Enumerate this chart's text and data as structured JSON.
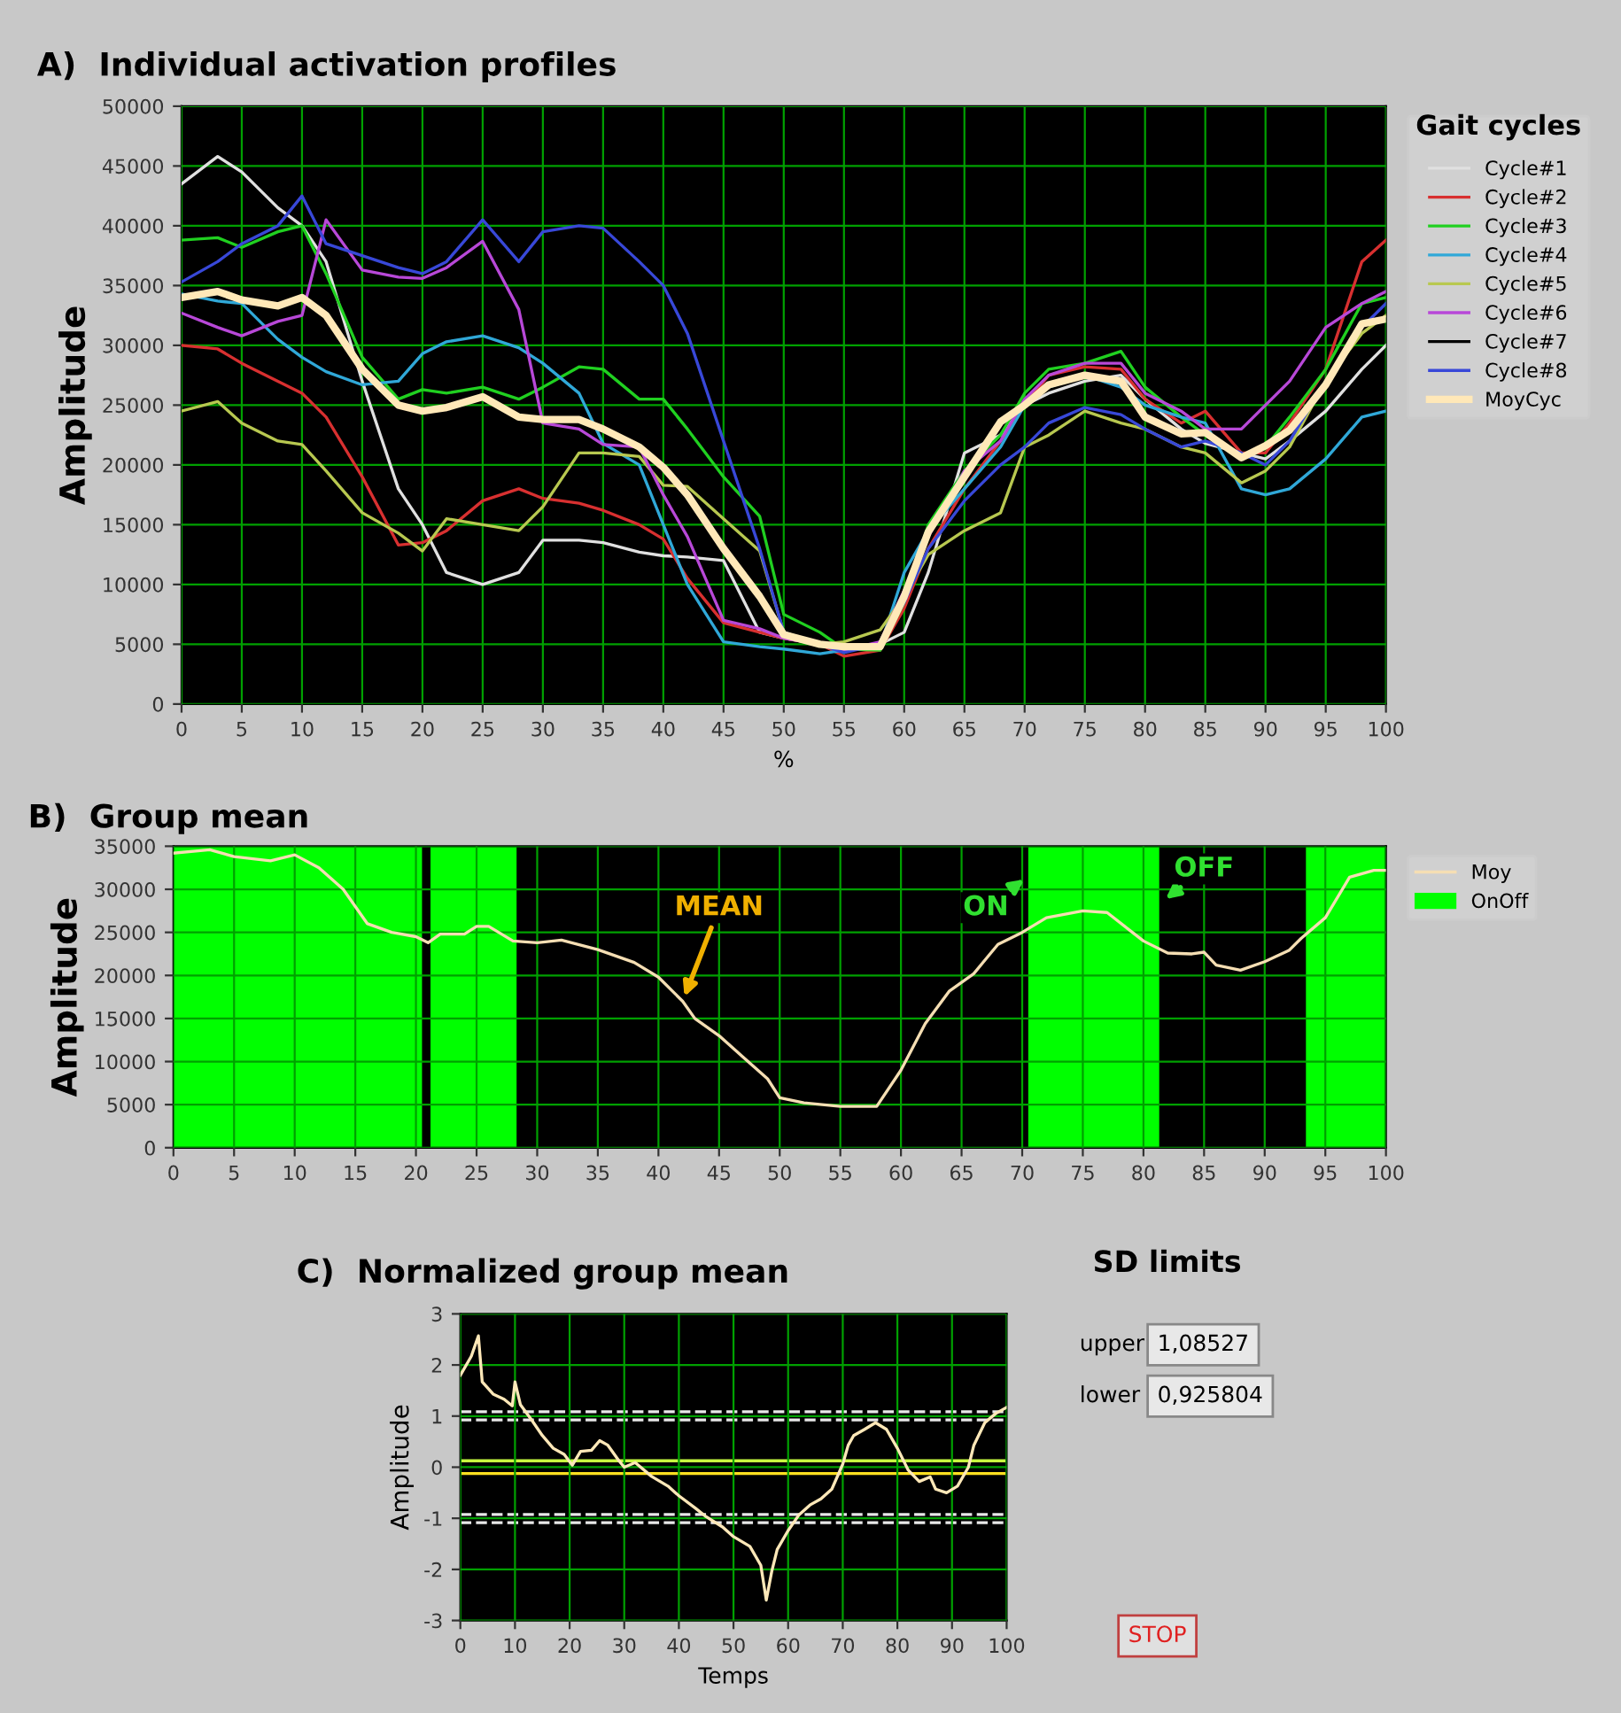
{
  "chart_data": [
    {
      "type": "line",
      "title": "A)  Individual activation profiles",
      "xlabel": "%",
      "ylabel": "Amplitude",
      "legend_title": "Gait cycles",
      "legend": "right",
      "grid": true,
      "x": [
        0,
        3,
        5,
        8,
        10,
        12,
        15,
        18,
        20,
        22,
        25,
        28,
        30,
        33,
        35,
        38,
        40,
        42,
        45,
        48,
        50,
        53,
        55,
        58,
        60,
        62,
        65,
        68,
        70,
        72,
        75,
        78,
        80,
        83,
        85,
        88,
        90,
        92,
        95,
        98,
        100
      ],
      "xlim": [
        0,
        100
      ],
      "xticks": [
        0,
        5,
        10,
        15,
        20,
        25,
        30,
        35,
        40,
        45,
        50,
        55,
        60,
        65,
        70,
        75,
        80,
        85,
        90,
        95,
        100
      ],
      "ylim": [
        0,
        50000
      ],
      "yticks": [
        0,
        5000,
        10000,
        15000,
        20000,
        25000,
        30000,
        35000,
        40000,
        45000,
        50000
      ],
      "series": [
        {
          "name": "Cycle#1",
          "color": "#e0e0e0",
          "values": [
            43500,
            45800,
            44500,
            41500,
            40000,
            37000,
            27000,
            18000,
            15000,
            11000,
            10000,
            11000,
            13700,
            13700,
            13500,
            12700,
            12400,
            12300,
            12000,
            6000,
            5500,
            5000,
            4700,
            5000,
            6000,
            11000,
            21000,
            22500,
            25000,
            26000,
            27000,
            27500,
            25500,
            23000,
            21800,
            21000,
            20500,
            22000,
            24500,
            28000,
            30000
          ]
        },
        {
          "name": "Cycle#2",
          "color": "#d83030",
          "values": [
            30000,
            29700,
            28500,
            27000,
            26000,
            24000,
            19000,
            13300,
            13500,
            14500,
            17000,
            18000,
            17200,
            16800,
            16200,
            15000,
            13800,
            10500,
            6800,
            6000,
            5500,
            5000,
            4000,
            4500,
            8000,
            13000,
            18000,
            22000,
            25000,
            27500,
            28200,
            28000,
            25500,
            23500,
            24500,
            21000,
            21000,
            23500,
            28000,
            37000,
            38800
          ]
        },
        {
          "name": "Cycle#3",
          "color": "#20d020",
          "values": [
            38800,
            39000,
            38200,
            39500,
            40000,
            36000,
            29000,
            25500,
            26300,
            26000,
            26500,
            25500,
            26500,
            28200,
            28000,
            25500,
            25500,
            23000,
            19000,
            15700,
            7500,
            6000,
            4600,
            4500,
            8500,
            15000,
            19500,
            22500,
            26000,
            28000,
            28500,
            29500,
            26500,
            24000,
            22500,
            20500,
            21500,
            24000,
            28000,
            33500,
            34000
          ]
        },
        {
          "name": "Cycle#4",
          "color": "#30a8d8",
          "values": [
            34300,
            33700,
            33500,
            30500,
            29000,
            27800,
            26700,
            27000,
            29300,
            30300,
            30800,
            29800,
            28500,
            26000,
            21800,
            20000,
            15000,
            10000,
            5200,
            4800,
            4600,
            4200,
            4500,
            4800,
            11000,
            14500,
            18000,
            21500,
            25000,
            26500,
            27500,
            26500,
            25000,
            24000,
            23500,
            18000,
            17500,
            18000,
            20500,
            24000,
            24500
          ]
        },
        {
          "name": "Cycle#5",
          "color": "#b8c850",
          "values": [
            24500,
            25300,
            23500,
            22000,
            21700,
            19500,
            16000,
            14300,
            12800,
            15500,
            15000,
            14500,
            16500,
            21000,
            21000,
            20700,
            18300,
            18200,
            15500,
            12800,
            6000,
            5000,
            5200,
            6200,
            9000,
            12500,
            14500,
            16000,
            21500,
            22500,
            24500,
            23500,
            23000,
            21500,
            21000,
            18500,
            19500,
            21500,
            27000,
            31000,
            32500
          ]
        },
        {
          "name": "Cycle#6",
          "color": "#b848d8",
          "values": [
            32700,
            31500,
            30800,
            32000,
            32500,
            40500,
            36300,
            35700,
            35600,
            36500,
            38700,
            33000,
            23500,
            23000,
            21700,
            21500,
            17500,
            14000,
            7000,
            6300,
            5500,
            5000,
            4500,
            5200,
            9500,
            14000,
            19500,
            22000,
            25500,
            27500,
            28500,
            28500,
            26000,
            24500,
            23000,
            23000,
            25000,
            27000,
            31500,
            33500,
            34500
          ]
        },
        {
          "name": "Cycle#7",
          "color": "#000000",
          "values": [
            null,
            null,
            null,
            null,
            null,
            null,
            null,
            null,
            null,
            null,
            null,
            null,
            null,
            null,
            null,
            null,
            null,
            null,
            null,
            null,
            null,
            null,
            null,
            null,
            null,
            null,
            null,
            null,
            null,
            null,
            null,
            null,
            null,
            null,
            null,
            null,
            null,
            null,
            null,
            null,
            null
          ]
        },
        {
          "name": "Cycle#8",
          "color": "#3848d8",
          "values": [
            35300,
            37000,
            38500,
            40000,
            42500,
            38500,
            37500,
            36500,
            36000,
            37000,
            40500,
            37000,
            39500,
            40000,
            39800,
            37000,
            35000,
            31000,
            22000,
            13000,
            6000,
            5000,
            4300,
            5000,
            8500,
            13000,
            17000,
            20000,
            21500,
            23500,
            24800,
            24200,
            23000,
            21500,
            22000,
            21000,
            20000,
            22000,
            27000,
            31500,
            33500
          ]
        },
        {
          "name": "MoyCyc",
          "color": "#ffe8b8",
          "values": [
            34000,
            34500,
            33800,
            33300,
            34000,
            32500,
            28000,
            25000,
            24500,
            24800,
            25700,
            24000,
            23800,
            23800,
            23000,
            21500,
            19800,
            17500,
            13000,
            9000,
            5800,
            5000,
            4800,
            4800,
            9000,
            14400,
            19000,
            23600,
            25000,
            26700,
            27500,
            27000,
            24000,
            22600,
            22700,
            20600,
            21600,
            22900,
            26700,
            31800,
            32200
          ]
        }
      ]
    },
    {
      "type": "line",
      "title": "B)  Group mean",
      "ylabel": "Amplitude",
      "legend": "right",
      "grid": true,
      "xlim": [
        0,
        100
      ],
      "xticks": [
        0,
        5,
        10,
        15,
        20,
        25,
        30,
        35,
        40,
        45,
        50,
        55,
        60,
        65,
        70,
        75,
        80,
        85,
        90,
        95,
        100
      ],
      "ylim": [
        0,
        35000
      ],
      "yticks": [
        0,
        5000,
        10000,
        15000,
        20000,
        25000,
        30000,
        35000
      ],
      "annotations": [
        {
          "text": "MEAN",
          "x": 42,
          "y": 17000
        },
        {
          "text": "ON",
          "x": 70.5,
          "y": 31500
        },
        {
          "text": "OFF",
          "x": 81.5,
          "y": 28500
        }
      ],
      "series": [
        {
          "name": "Moy",
          "color": "#f5deb3",
          "x": [
            0,
            3,
            5,
            8,
            10,
            12,
            14,
            15,
            16,
            18,
            20,
            21,
            22,
            24,
            25,
            26,
            28,
            30,
            32,
            35,
            38,
            40,
            42,
            43,
            45,
            47,
            49,
            50,
            52,
            55,
            57,
            58,
            60,
            62,
            64,
            66,
            67,
            68,
            70,
            72,
            75,
            77,
            80,
            82,
            84,
            85,
            86,
            88,
            90,
            92,
            93,
            95,
            97,
            99,
            100
          ],
          "values": [
            34200,
            34600,
            33800,
            33300,
            34000,
            32500,
            30000,
            28000,
            26000,
            25000,
            24500,
            23800,
            24800,
            24800,
            25700,
            25700,
            24000,
            23800,
            24100,
            23000,
            21500,
            19800,
            17000,
            15000,
            13000,
            10500,
            8000,
            5800,
            5200,
            4800,
            4800,
            4800,
            9000,
            14400,
            18200,
            20200,
            21900,
            23600,
            25000,
            26700,
            27500,
            27300,
            24000,
            22600,
            22500,
            22700,
            21200,
            20600,
            21600,
            22900,
            24300,
            26700,
            31400,
            32200,
            32200
          ]
        },
        {
          "name": "OnOff",
          "type": "area",
          "color": "#00ff00",
          "x": [
            0,
            20.5,
            20.5,
            21.2,
            21.2,
            28.3,
            28.3,
            70.5,
            70.5,
            81.3,
            81.3,
            93.4,
            93.4,
            100
          ],
          "values": [
            35000,
            35000,
            0,
            0,
            35000,
            35000,
            0,
            0,
            35000,
            35000,
            0,
            0,
            35000,
            35000
          ]
        }
      ]
    },
    {
      "type": "line",
      "title": "C)  Normalized group mean",
      "xlabel": "Temps",
      "ylabel": "Amplitude",
      "grid": true,
      "xlim": [
        0,
        100
      ],
      "xticks": [
        0,
        10,
        20,
        30,
        40,
        50,
        60,
        70,
        80,
        90,
        100
      ],
      "ylim": [
        -3,
        3
      ],
      "yticks": [
        -3,
        -2,
        -1,
        0,
        1,
        2,
        3
      ],
      "ref_lines": [
        {
          "axis": "y",
          "value": 1.08527,
          "color": "#e8e8e8",
          "line_style": "dashed"
        },
        {
          "axis": "y",
          "value": 0.925804,
          "color": "#e8e8e8",
          "line_style": "dashed"
        },
        {
          "axis": "y",
          "value": -0.925804,
          "color": "#e8e8e8",
          "line_style": "dashed"
        },
        {
          "axis": "y",
          "value": -1.08527,
          "color": "#e8e8e8",
          "line_style": "dashed"
        },
        {
          "axis": "y",
          "value": 0.125,
          "color": "#c8ff40",
          "line_style": "solid"
        },
        {
          "axis": "y",
          "value": -0.125,
          "color": "#ffe020",
          "line_style": "solid"
        }
      ],
      "series": [
        {
          "color": "#ffe8b8",
          "x": [
            0,
            2,
            3.3,
            4,
            6,
            8,
            9.5,
            10,
            11,
            13,
            15,
            17,
            19,
            20.5,
            22,
            24,
            25.5,
            27,
            29,
            30,
            32,
            35,
            38,
            40,
            43,
            45,
            48,
            50,
            53,
            55,
            56,
            57,
            58,
            60,
            62,
            64,
            66,
            68,
            70,
            71,
            72,
            74,
            76,
            78,
            80,
            82,
            84,
            86,
            87,
            89,
            91,
            93,
            94,
            96,
            98,
            100
          ],
          "values": [
            1.8,
            2.17,
            2.57,
            1.67,
            1.43,
            1.33,
            1.2,
            1.67,
            1.22,
            0.93,
            0.62,
            0.37,
            0.25,
            0.04,
            0.31,
            0.33,
            0.52,
            0.43,
            0.13,
            0.0,
            0.09,
            -0.18,
            -0.37,
            -0.56,
            -0.8,
            -0.97,
            -1.17,
            -1.36,
            -1.55,
            -1.92,
            -2.6,
            -2.04,
            -1.61,
            -1.24,
            -0.93,
            -0.74,
            -0.62,
            -0.43,
            0.06,
            0.43,
            0.62,
            0.74,
            0.87,
            0.74,
            0.37,
            -0.06,
            -0.28,
            -0.19,
            -0.43,
            -0.5,
            -0.37,
            0.0,
            0.43,
            0.87,
            1.05,
            1.17
          ]
        }
      ]
    },
    {
      "type": "other",
      "title": "SD limits",
      "annotations": [
        "upper",
        "1,08527",
        "lower",
        "0,925804",
        "STOP"
      ]
    }
  ]
}
